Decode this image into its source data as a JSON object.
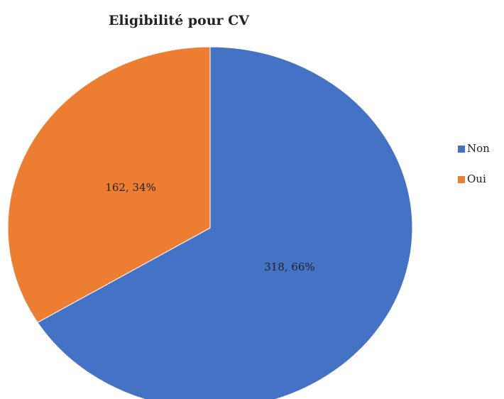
{
  "chart_data": {
    "type": "pie",
    "title": "Eligibilité pour CV",
    "categories": [
      "Non",
      "Oui"
    ],
    "values": [
      318,
      162
    ],
    "value_labels": [
      "318, 66%",
      "162, 34%"
    ],
    "colors": [
      "#4472c4",
      "#ed7d31"
    ],
    "legend": "right"
  }
}
